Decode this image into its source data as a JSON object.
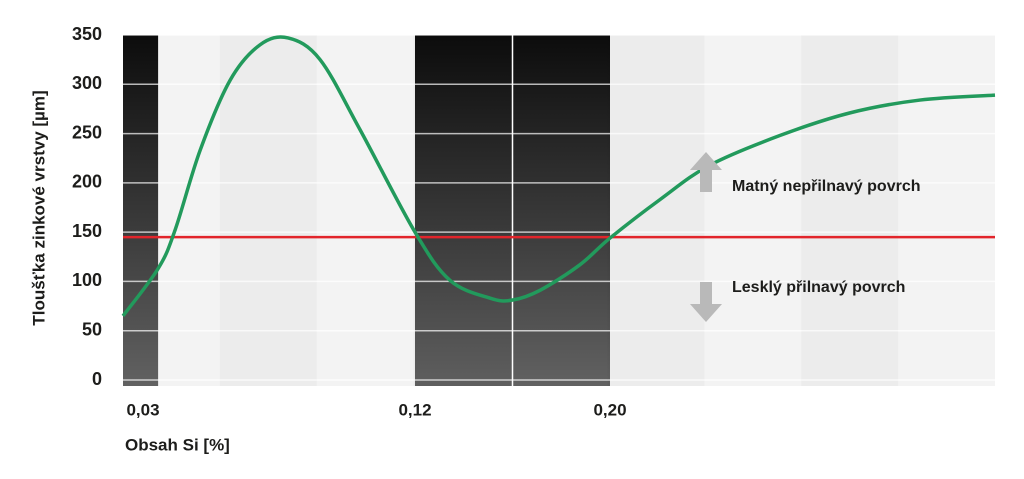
{
  "chart_data": {
    "type": "line",
    "y_label": "Tloušťka zinkové vrstvy [µm]",
    "x_label": "Obsah Si [%]",
    "xlim": [
      0.0234,
      0.358
    ],
    "xticks": [
      {
        "value": 0.03,
        "label": "0,03"
      },
      {
        "value": 0.12,
        "label": "0,12"
      },
      {
        "value": 0.2,
        "label": "0,20"
      }
    ],
    "ylim": [
      0,
      350
    ],
    "yticks": [
      0,
      50,
      100,
      150,
      200,
      250,
      300,
      350
    ],
    "bands": [
      [
        0.0234,
        0.035
      ],
      [
        0.12,
        0.16
      ],
      [
        0.16,
        0.2
      ]
    ],
    "band_color": "#6cc199",
    "threshold": {
      "value": 145,
      "color": "#e2252b"
    },
    "annotations": [
      "Matný nepřilnavý povrch",
      "Lesklý přilnavý povrch"
    ],
    "series": [
      {
        "color": "#229a5c",
        "x": [
          0.0234,
          0.035,
          0.0406,
          0.0489,
          0.0588,
          0.0687,
          0.078,
          0.0886,
          0.1018,
          0.12,
          0.1344,
          0.1508,
          0.1598,
          0.1713,
          0.1877,
          0.2,
          0.2205,
          0.241,
          0.2697,
          0.2985,
          0.3272,
          0.358
        ],
        "values": [
          65,
          113,
          152,
          233,
          304,
          340,
          347,
          325,
          254,
          150,
          101,
          83,
          81,
          91,
          117,
          144,
          183,
          218,
          248,
          271,
          284,
          289
        ]
      }
    ]
  }
}
